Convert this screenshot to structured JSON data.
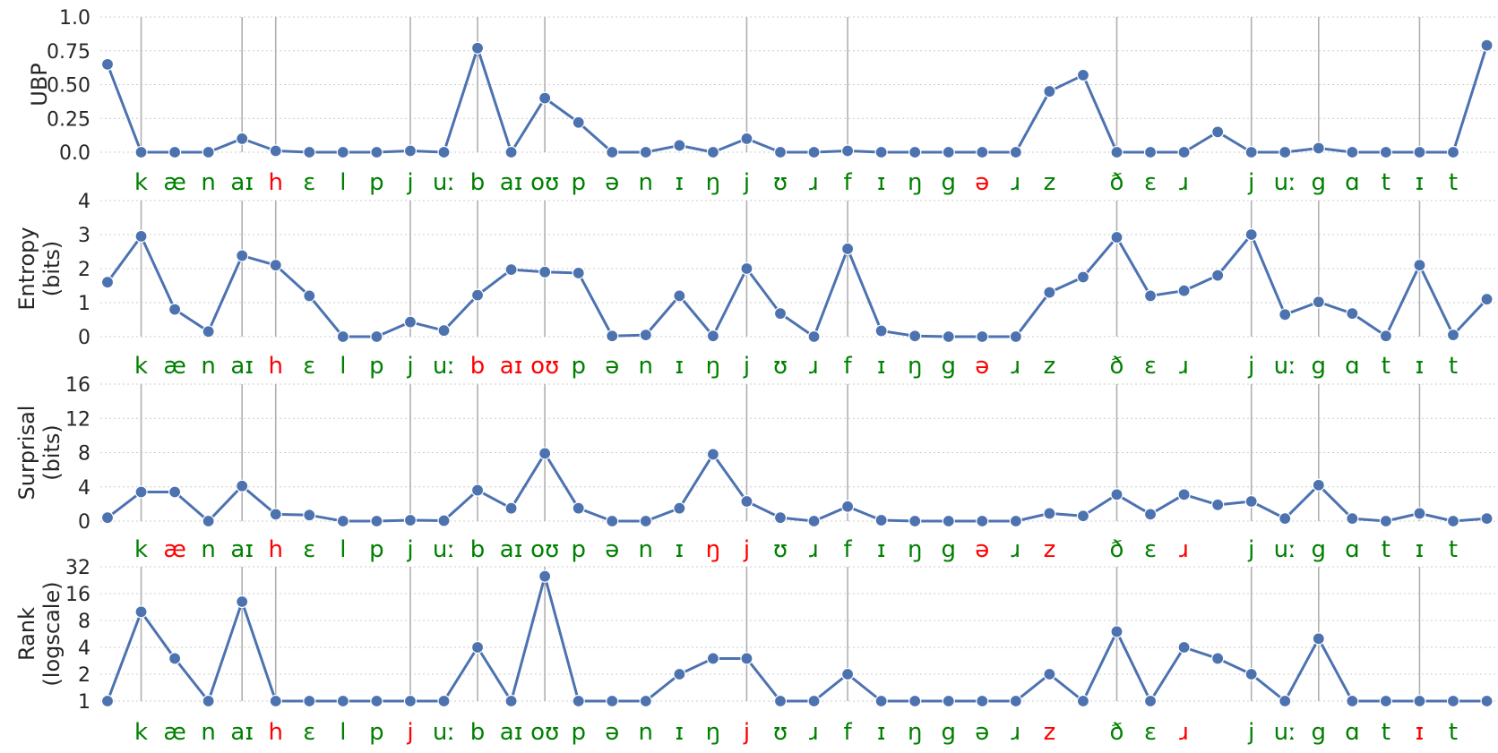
{
  "colors": {
    "line": "#4c72b0",
    "correct": "#008000",
    "incorrect": "#ff0000",
    "grid": "#cccccc",
    "boundary": "#b0b0b0"
  },
  "chart_data": {
    "type": "line",
    "x": [
      0,
      1,
      2,
      3,
      4,
      5,
      6,
      7,
      8,
      9,
      10,
      11,
      12,
      13,
      14,
      15,
      16,
      17,
      18,
      19,
      20,
      21,
      22,
      23,
      24,
      25,
      26,
      27,
      28,
      29,
      30,
      31,
      32,
      33,
      34,
      35,
      36,
      37,
      38,
      39,
      40,
      41
    ],
    "phonemes": [
      "k",
      "æ",
      "n",
      "aɪ",
      "h",
      "ɛ",
      "l",
      "p",
      "j",
      "uː",
      "b",
      "aɪ",
      "oʊ",
      "p",
      "ə",
      "n",
      "ɪ",
      "ŋ",
      "j",
      "ʊ",
      "ɹ",
      "f",
      "ɪ",
      "ŋ",
      "g",
      "ə",
      "ɹ",
      "z",
      "",
      "ð",
      "ɛ",
      "ɹ",
      "",
      "j",
      "uː",
      "g",
      "ɑ",
      "t",
      "ɪ",
      "t"
    ],
    "phoneme_x": [
      1,
      2,
      3,
      4,
      5,
      6,
      7,
      8,
      9,
      10,
      11,
      12,
      13,
      14,
      15,
      16,
      17,
      18,
      19,
      20,
      21,
      22,
      23,
      24,
      25,
      26,
      27,
      28,
      29,
      30,
      31,
      32,
      33,
      34,
      35,
      36,
      37,
      38,
      39,
      40
    ],
    "word_boundaries": [
      1,
      4,
      5,
      9,
      11,
      13,
      19,
      22,
      30,
      34,
      36,
      39
    ],
    "series": [
      {
        "name": "UBP",
        "ylabel": [
          "UBP"
        ],
        "ylim": [
          0,
          1.0
        ],
        "yticks": [
          0.0,
          0.25,
          0.5,
          0.75,
          1.0
        ],
        "yticklabels": [
          "0.0",
          "0.25",
          "0.50",
          "0.75",
          "1.0"
        ],
        "scale": "linear",
        "values": [
          0.65,
          0.0,
          0.0,
          0.0,
          0.1,
          0.01,
          0.0,
          0.0,
          0.0,
          0.01,
          0.0,
          0.77,
          0.0,
          0.4,
          0.22,
          0.0,
          0.0,
          0.05,
          0.0,
          0.1,
          0.0,
          0.0,
          0.01,
          0.0,
          0.0,
          0.0,
          0.0,
          0.0,
          0.45,
          0.57,
          0.0,
          0.0,
          0.0,
          0.15,
          0.0,
          0.0,
          0.03,
          0.0,
          0.0,
          0.0,
          0.0,
          0.79
        ],
        "incorrect": [
          4,
          25
        ]
      },
      {
        "name": "Entropy",
        "ylabel": [
          "Entropy",
          "(bits)"
        ],
        "ylim": [
          0,
          4
        ],
        "yticks": [
          0,
          1,
          2,
          3,
          4
        ],
        "yticklabels": [
          "0",
          "1",
          "2",
          "3",
          "4"
        ],
        "scale": "linear",
        "values": [
          1.6,
          2.95,
          0.8,
          0.15,
          2.38,
          2.1,
          1.2,
          0.0,
          0.0,
          0.43,
          0.18,
          1.22,
          1.97,
          1.9,
          1.87,
          0.02,
          0.05,
          1.2,
          0.02,
          2.0,
          0.68,
          0.0,
          2.58,
          0.17,
          0.02,
          0.0,
          0.0,
          0.0,
          1.3,
          1.75,
          2.92,
          1.2,
          1.35,
          1.8,
          3.0,
          0.65,
          1.02,
          0.68,
          0.02,
          2.1,
          0.05,
          1.1
        ],
        "incorrect": [
          4,
          10,
          11,
          12,
          25
        ]
      },
      {
        "name": "Surprisal",
        "ylabel": [
          "Surprisal",
          "(bits)"
        ],
        "ylim": [
          0,
          16
        ],
        "yticks": [
          0,
          4,
          8,
          12,
          16
        ],
        "yticklabels": [
          "0",
          "4",
          "8",
          "12",
          "16"
        ],
        "scale": "linear",
        "values": [
          0.4,
          3.4,
          3.4,
          0.0,
          4.1,
          0.8,
          0.7,
          0.0,
          0.0,
          0.1,
          0.05,
          3.6,
          1.5,
          7.9,
          1.5,
          0.0,
          0.0,
          1.5,
          7.8,
          2.3,
          0.4,
          0.0,
          1.7,
          0.1,
          0.0,
          0.0,
          0.0,
          0.0,
          0.9,
          0.6,
          3.1,
          0.8,
          3.1,
          1.9,
          2.3,
          0.3,
          4.2,
          0.3,
          0.0,
          0.9,
          0.0,
          0.3
        ],
        "incorrect": [
          1,
          4,
          17,
          18,
          25,
          27,
          31
        ]
      },
      {
        "name": "Rank",
        "ylabel": [
          "Rank",
          "(logscale)"
        ],
        "ylim": [
          1,
          32
        ],
        "yticks": [
          1,
          2,
          4,
          8,
          16,
          32
        ],
        "yticklabels": [
          "1",
          "2",
          "4",
          "8",
          "16",
          "32"
        ],
        "scale": "log2",
        "values": [
          1,
          10,
          3,
          1,
          13,
          1,
          1,
          1,
          1,
          1,
          1,
          4,
          1,
          25,
          1,
          1,
          1,
          2,
          3,
          3,
          1,
          1,
          2,
          1,
          1,
          1,
          1,
          1,
          2,
          1,
          6,
          1,
          4,
          3,
          2,
          1,
          5,
          1,
          1,
          1,
          1,
          1
        ],
        "incorrect": [
          4,
          8,
          18,
          27,
          31,
          38
        ]
      }
    ]
  }
}
